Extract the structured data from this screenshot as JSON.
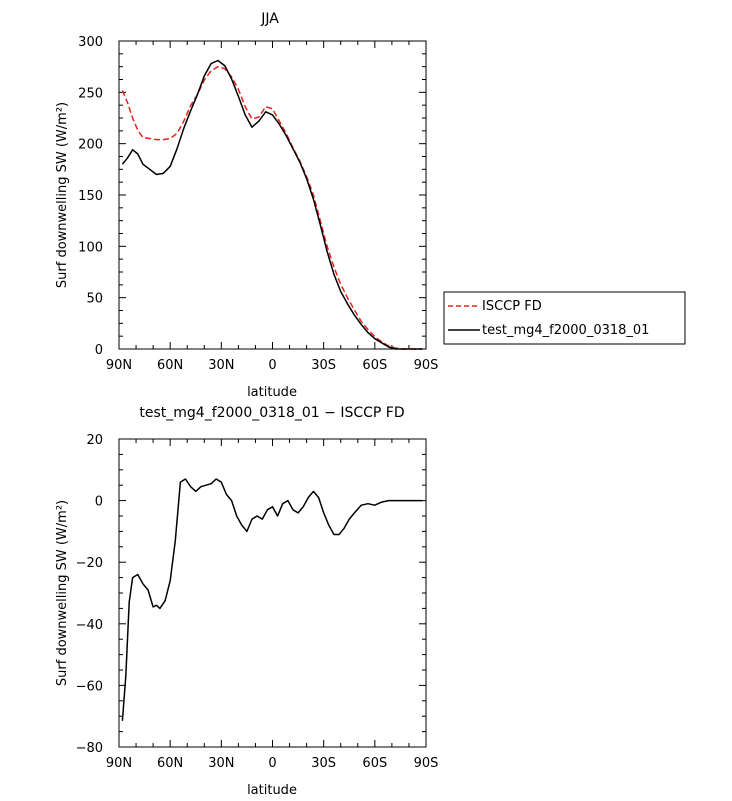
{
  "chart_data": [
    {
      "type": "line",
      "title": "JJA",
      "xlabel": "latitude",
      "ylabel": "Surf downwelling SW (W/m²)",
      "xlim": [
        90,
        -90
      ],
      "ylim": [
        0,
        300
      ],
      "x_ticks": [
        "90N",
        "60N",
        "30N",
        "0",
        "30S",
        "60S",
        "90S"
      ],
      "y_ticks": [
        "0",
        "50",
        "100",
        "150",
        "200",
        "250",
        "300"
      ],
      "legend_position": "right",
      "series": [
        {
          "name": "ISCCP FD",
          "color": "#e8221c",
          "dash": "dashed",
          "x": [
            88,
            85,
            82,
            79,
            76,
            72,
            68,
            64,
            60,
            56,
            52,
            48,
            44,
            40,
            36,
            32,
            28,
            24,
            20,
            16,
            12,
            8,
            4,
            0,
            -4,
            -8,
            -12,
            -16,
            -20,
            -24,
            -28,
            -32,
            -36,
            -40,
            -44,
            -48,
            -52,
            -56,
            -60,
            -64,
            -68,
            -72,
            -76,
            -80,
            -84,
            -88
          ],
          "y": [
            252,
            240,
            225,
            213,
            206,
            205,
            204,
            204,
            205,
            210,
            222,
            237,
            248,
            262,
            271,
            275,
            273,
            265,
            253,
            236,
            224,
            226,
            236,
            234,
            222,
            210,
            196,
            183,
            168,
            150,
            125,
            100,
            80,
            63,
            50,
            38,
            27,
            19,
            12,
            7,
            3,
            1,
            0,
            0,
            0,
            0
          ]
        },
        {
          "name": "test_mg4_f2000_0318_01",
          "color": "#000000",
          "dash": "solid",
          "x": [
            88,
            85,
            82,
            79,
            76,
            72,
            68,
            64,
            60,
            56,
            52,
            48,
            44,
            40,
            36,
            32,
            28,
            24,
            20,
            16,
            12,
            8,
            4,
            0,
            -4,
            -8,
            -12,
            -16,
            -20,
            -24,
            -28,
            -32,
            -36,
            -40,
            -44,
            -48,
            -52,
            -56,
            -60,
            -64,
            -68,
            -72,
            -76,
            -80,
            -84,
            -88
          ],
          "y": [
            180,
            186,
            194,
            190,
            180,
            175,
            170,
            171,
            178,
            195,
            215,
            232,
            248,
            266,
            278,
            281,
            276,
            263,
            246,
            228,
            216,
            222,
            231,
            228,
            219,
            208,
            195,
            182,
            166,
            146,
            121,
            95,
            73,
            56,
            44,
            33,
            24,
            16,
            10,
            6,
            2,
            0,
            0,
            0,
            0,
            0
          ]
        }
      ]
    },
    {
      "type": "line",
      "title": "test_mg4_f2000_0318_01 − ISCCP FD",
      "xlabel": "latitude",
      "ylabel": "Surf downwelling SW (W/m²)",
      "xlim": [
        90,
        -90
      ],
      "ylim": [
        -80,
        20
      ],
      "x_ticks": [
        "90N",
        "60N",
        "30N",
        "0",
        "30S",
        "60S",
        "90S"
      ],
      "y_ticks": [
        "−80",
        "−60",
        "−40",
        "−20",
        "0",
        "20"
      ],
      "series": [
        {
          "color": "#000000",
          "dash": "solid",
          "x": [
            88,
            86,
            84,
            82,
            79,
            76,
            73,
            70,
            68,
            66,
            63,
            60,
            57,
            54,
            51,
            48,
            45,
            42,
            39,
            36,
            33,
            30,
            27,
            24,
            21,
            18,
            15,
            12,
            9,
            6,
            3,
            0,
            -3,
            -6,
            -9,
            -12,
            -15,
            -18,
            -21,
            -24,
            -27,
            -30,
            -33,
            -36,
            -39,
            -42,
            -45,
            -48,
            -52,
            -56,
            -60,
            -64,
            -68,
            -72,
            -76,
            -80,
            -84,
            -88
          ],
          "y": [
            -71.5,
            -57,
            -33,
            -25,
            -24,
            -27,
            -29,
            -34.5,
            -34,
            -35,
            -32.5,
            -26,
            -13,
            6,
            7,
            4.5,
            3,
            4.5,
            5,
            5.5,
            7,
            6,
            2,
            0,
            -5,
            -8,
            -10,
            -6,
            -5,
            -6,
            -3,
            -2,
            -5,
            -1,
            0,
            -3,
            -4,
            -2,
            1,
            3,
            1,
            -4,
            -8,
            -11,
            -11,
            -9,
            -6,
            -4,
            -1.5,
            -1,
            -1.5,
            -0.5,
            0,
            0,
            0,
            0,
            0,
            0
          ]
        }
      ]
    }
  ]
}
